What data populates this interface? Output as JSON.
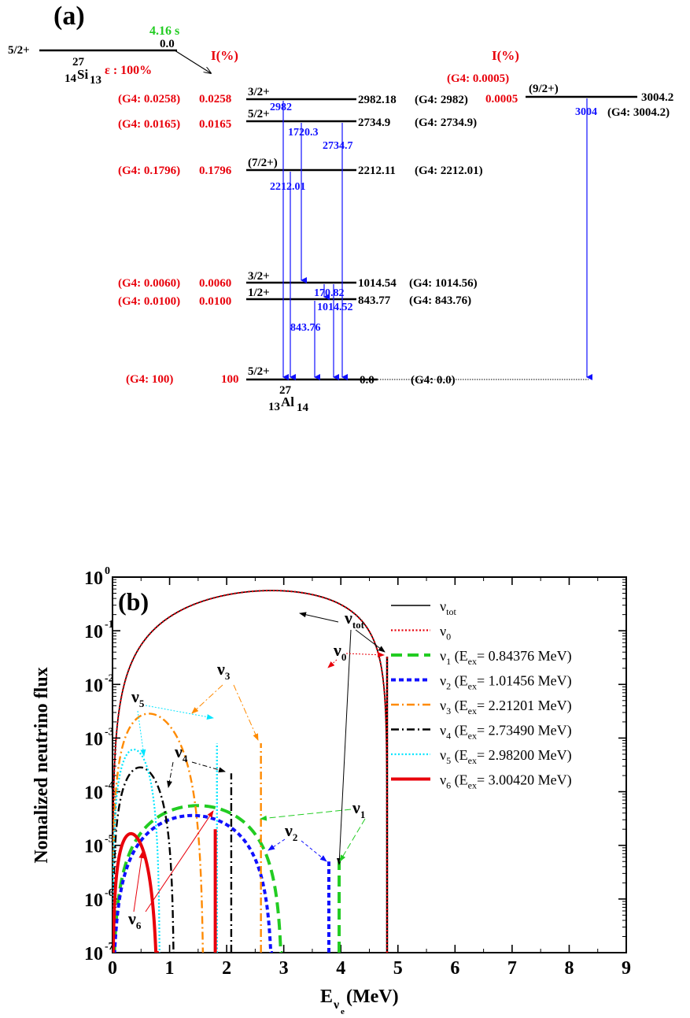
{
  "colors": {
    "red": "#e8000b",
    "blue": "#1010ff",
    "green": "#22cc22",
    "orange": "#ff8a00",
    "cyan": "#00e5ff",
    "black": "#000000"
  },
  "panel_a": {
    "label": "(a)",
    "parent": {
      "spin": "5/2+",
      "energy": "0.0",
      "halflife": "4.16 s",
      "mass": "27",
      "z": "14",
      "symbol": "Si",
      "n": "13",
      "decay": "ε : 100%"
    },
    "daughter": {
      "mass": "27",
      "z": "13",
      "symbol": "Al",
      "n": "14"
    },
    "intensity_header": "I(%)",
    "levels": [
      {
        "spin": "3/2+",
        "energy": "2982.18",
        "g4": "(G4: 2982)",
        "intensity": "0.0258",
        "intensity_g4": "(G4: 0.0258)"
      },
      {
        "spin": "5/2+",
        "energy": "2734.9",
        "g4": "(G4: 2734.9)",
        "intensity": "0.0165",
        "intensity_g4": "(G4: 0.0165)"
      },
      {
        "spin": "(7/2+)",
        "energy": "2212.11",
        "g4": "(G4: 2212.01)",
        "intensity": "0.1796",
        "intensity_g4": "(G4: 0.1796)"
      },
      {
        "spin": "3/2+",
        "energy": "1014.54",
        "g4": "(G4: 1014.56)",
        "intensity": "0.0060",
        "intensity_g4": "(G4: 0.0060)"
      },
      {
        "spin": "1/2+",
        "energy": "843.77",
        "g4": "(G4: 843.76)",
        "intensity": "0.0100",
        "intensity_g4": "(G4: 0.0100)"
      },
      {
        "spin": "5/2+",
        "energy": "0.0",
        "g4": "(G4: 0.0)",
        "intensity": "100",
        "intensity_g4": "(G4: 100)"
      }
    ],
    "side_level": {
      "spin": "(9/2+)",
      "energy": "3004.2",
      "g4": "(G4: 3004.2)",
      "intensity": "0.0005",
      "intensity_g4": "(G4: 0.0005)"
    },
    "gammas": [
      "2982",
      "1720.3",
      "2734.7",
      "2212.01",
      "170.82",
      "1014.52",
      "843.76",
      "3004"
    ]
  },
  "chart_data": {
    "type": "line",
    "panel_label": "(b)",
    "xlabel": "E",
    "xlabel_sub": "ν",
    "xlabel_subsub": "e",
    "xlabel_unit": "(MeV)",
    "ylabel": "Nomalized neutrino flux",
    "xlim": [
      0,
      9
    ],
    "ylim": [
      1e-07,
      1
    ],
    "yscale": "log",
    "x_ticks": [
      "0",
      "1",
      "2",
      "3",
      "4",
      "5",
      "6",
      "7",
      "8",
      "9"
    ],
    "y_tick_exponents": [
      "0",
      "-1",
      "-2",
      "-3",
      "-4",
      "-5",
      "-6",
      "-7"
    ],
    "legend_position": "top-right",
    "series": [
      {
        "name": "ν",
        "sub": "tot",
        "tail": "",
        "color": "#000000",
        "style": "solid",
        "endpoint": 4.81,
        "peak": 0.47,
        "rpeak": 0.42
      },
      {
        "name": "ν",
        "sub": "0",
        "tail": "",
        "color": "#e8000b",
        "style": "dotted",
        "endpoint": 4.81,
        "peak": 0.47,
        "rpeak": 0.42
      },
      {
        "name": "ν",
        "sub": "1",
        "tail": " (E",
        "tail_sub": "ex",
        "tail_end": "= 0.84376 MeV)",
        "color": "#22cc22",
        "style": "dashed",
        "endpoint": 2.98,
        "peak": 5.5e-05,
        "rpeak": 0.5
      },
      {
        "name": "ν",
        "sub": "2",
        "tail": " (E",
        "tail_sub": "ex",
        "tail_end": "= 1.01456 MeV)",
        "color": "#1010ff",
        "style": "shortdash",
        "endpoint": 2.81,
        "peak": 3.6e-05,
        "rpeak": 0.5
      },
      {
        "name": "ν",
        "sub": "3",
        "tail": " (E",
        "tail_sub": "ex",
        "tail_end": "= 2.21201 MeV)",
        "color": "#ff8a00",
        "style": "dashdot",
        "endpoint": 1.6,
        "peak": 0.0019,
        "rpeak": 0.6
      },
      {
        "name": "ν",
        "sub": "4",
        "tail": " (E",
        "tail_sub": "ex",
        "tail_end": "= 2.73490 MeV)",
        "color": "#000000",
        "style": "dashdot",
        "endpoint": 1.08,
        "peak": 0.00026,
        "rpeak": 0.55
      },
      {
        "name": "ν",
        "sub": "5",
        "tail": " (E",
        "tail_sub": "ex",
        "tail_end": "= 2.98200 MeV)",
        "color": "#00e5ff",
        "style": "dotted",
        "endpoint": 0.83,
        "peak": 0.00056,
        "rpeak": 0.55
      },
      {
        "name": "ν",
        "sub": "6",
        "tail": " (E",
        "tail_sub": "ex",
        "tail_end": "= 3.00420 MeV)",
        "color": "#e8000b",
        "style": "thicksolid",
        "endpoint": 0.81,
        "peak": 1.1e-05,
        "rpeak": 0.6
      }
    ],
    "spikes": [
      {
        "series": 0,
        "x": 4.81,
        "top": 0.033
      },
      {
        "series": 1,
        "x": 4.81,
        "top": 0.033
      },
      {
        "series": 2,
        "x": 3.97,
        "top": 5e-06
      },
      {
        "series": 3,
        "x": 3.79,
        "top": 5e-06
      },
      {
        "series": 4,
        "x": 2.6,
        "top": 0.0008
      },
      {
        "series": 5,
        "x": 2.08,
        "top": 0.00022
      },
      {
        "series": 6,
        "x": 1.83,
        "top": 0.0008
      },
      {
        "series": 7,
        "x": 1.8,
        "top": 2e-05
      }
    ],
    "annotations": [
      {
        "name": "ν",
        "sub": "tot"
      },
      {
        "name": "ν",
        "sub": "0"
      },
      {
        "name": "ν",
        "sub": "1"
      },
      {
        "name": "ν",
        "sub": "2"
      },
      {
        "name": "ν",
        "sub": "3"
      },
      {
        "name": "ν",
        "sub": "4"
      },
      {
        "name": "ν",
        "sub": "5"
      },
      {
        "name": "ν",
        "sub": "6"
      }
    ]
  }
}
